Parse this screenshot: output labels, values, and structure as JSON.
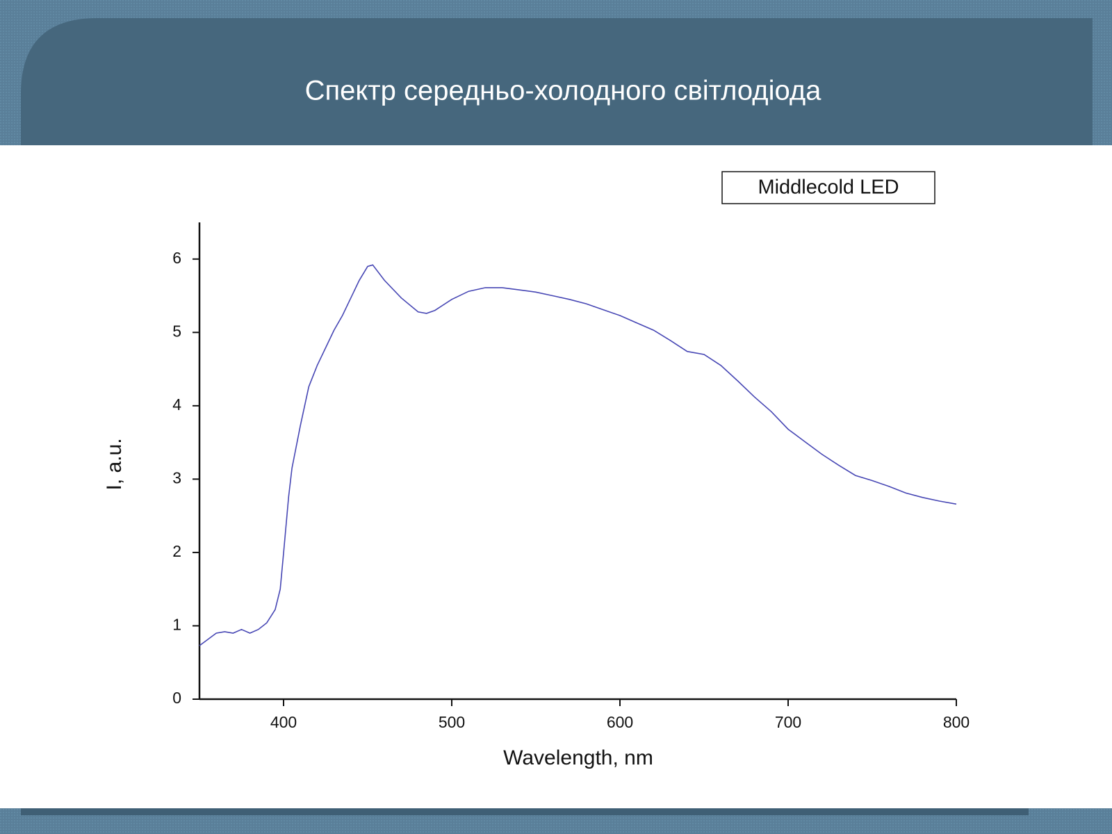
{
  "title": "Спектр середньо-холодного світлодіода",
  "chart_data": {
    "type": "line",
    "x_label": "Wavelength, nm",
    "y_label": "I, a.u.",
    "x": [
      350,
      360,
      365,
      370,
      375,
      380,
      385,
      390,
      395,
      398,
      400,
      403,
      405,
      410,
      415,
      420,
      425,
      430,
      435,
      440,
      445,
      450,
      453,
      460,
      470,
      480,
      485,
      490,
      500,
      510,
      520,
      530,
      540,
      550,
      560,
      570,
      580,
      590,
      600,
      610,
      620,
      630,
      640,
      650,
      660,
      670,
      680,
      690,
      700,
      710,
      720,
      730,
      740,
      750,
      760,
      770,
      780,
      790,
      800
    ],
    "series": [
      {
        "name": "Middlecold LED",
        "color": "#4646b4",
        "values": [
          0.73,
          0.9,
          0.92,
          0.9,
          0.95,
          0.9,
          0.95,
          1.04,
          1.22,
          1.5,
          1.99,
          2.76,
          3.15,
          3.73,
          4.26,
          4.55,
          4.79,
          5.03,
          5.23,
          5.47,
          5.71,
          5.9,
          5.92,
          5.71,
          5.47,
          5.28,
          5.26,
          5.3,
          5.45,
          5.56,
          5.61,
          5.61,
          5.58,
          5.55,
          5.5,
          5.45,
          5.39,
          5.31,
          5.23,
          5.13,
          5.03,
          4.89,
          4.74,
          4.7,
          4.55,
          4.34,
          4.12,
          3.92,
          3.68,
          3.51,
          3.34,
          3.19,
          3.05,
          2.98,
          2.9,
          2.81,
          2.75,
          2.7,
          2.66
        ]
      }
    ],
    "xlim": [
      350,
      800
    ],
    "xticks": [
      400,
      500,
      600,
      700,
      800
    ],
    "ylim": [
      0,
      6.5
    ],
    "yticks": [
      0,
      1,
      2,
      3,
      4,
      5,
      6
    ],
    "legend": "top-right",
    "grid": false
  }
}
